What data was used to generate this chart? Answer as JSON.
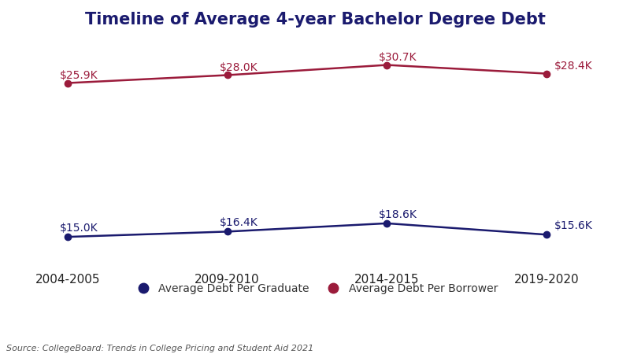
{
  "title": "Timeline of Average 4-year Bachelor Degree Debt",
  "title_fontsize": 15,
  "title_fontweight": "bold",
  "title_color": "#1a1a6e",
  "categories": [
    "2004-2005",
    "2009-2010",
    "2014-2015",
    "2019-2020"
  ],
  "x_positions": [
    0,
    1,
    2,
    3
  ],
  "graduate_display": [
    15000,
    16400,
    18600,
    15600
  ],
  "graduate_labels": [
    "$15.0K",
    "$16.4K",
    "$18.6K",
    "$15.6K"
  ],
  "borrower_display": [
    55900,
    58000,
    60700,
    58400
  ],
  "borrower_labels": [
    "$25.9K",
    "$28.0K",
    "$30.7K",
    "$28.4K"
  ],
  "graduate_color": "#1a1a6e",
  "borrower_color": "#9b1b3b",
  "line_width": 1.8,
  "marker_size": 6,
  "legend_label_graduate": "Average Debt Per Graduate",
  "legend_label_borrower": "Average Debt Per Borrower",
  "source_text": "Source: CollegeBoard: Trends in College Pricing and Student Aid 2021",
  "source_fontsize": 8,
  "background_color": "#ffffff",
  "annotation_fontsize": 10,
  "ylim": [
    8000,
    68000
  ]
}
